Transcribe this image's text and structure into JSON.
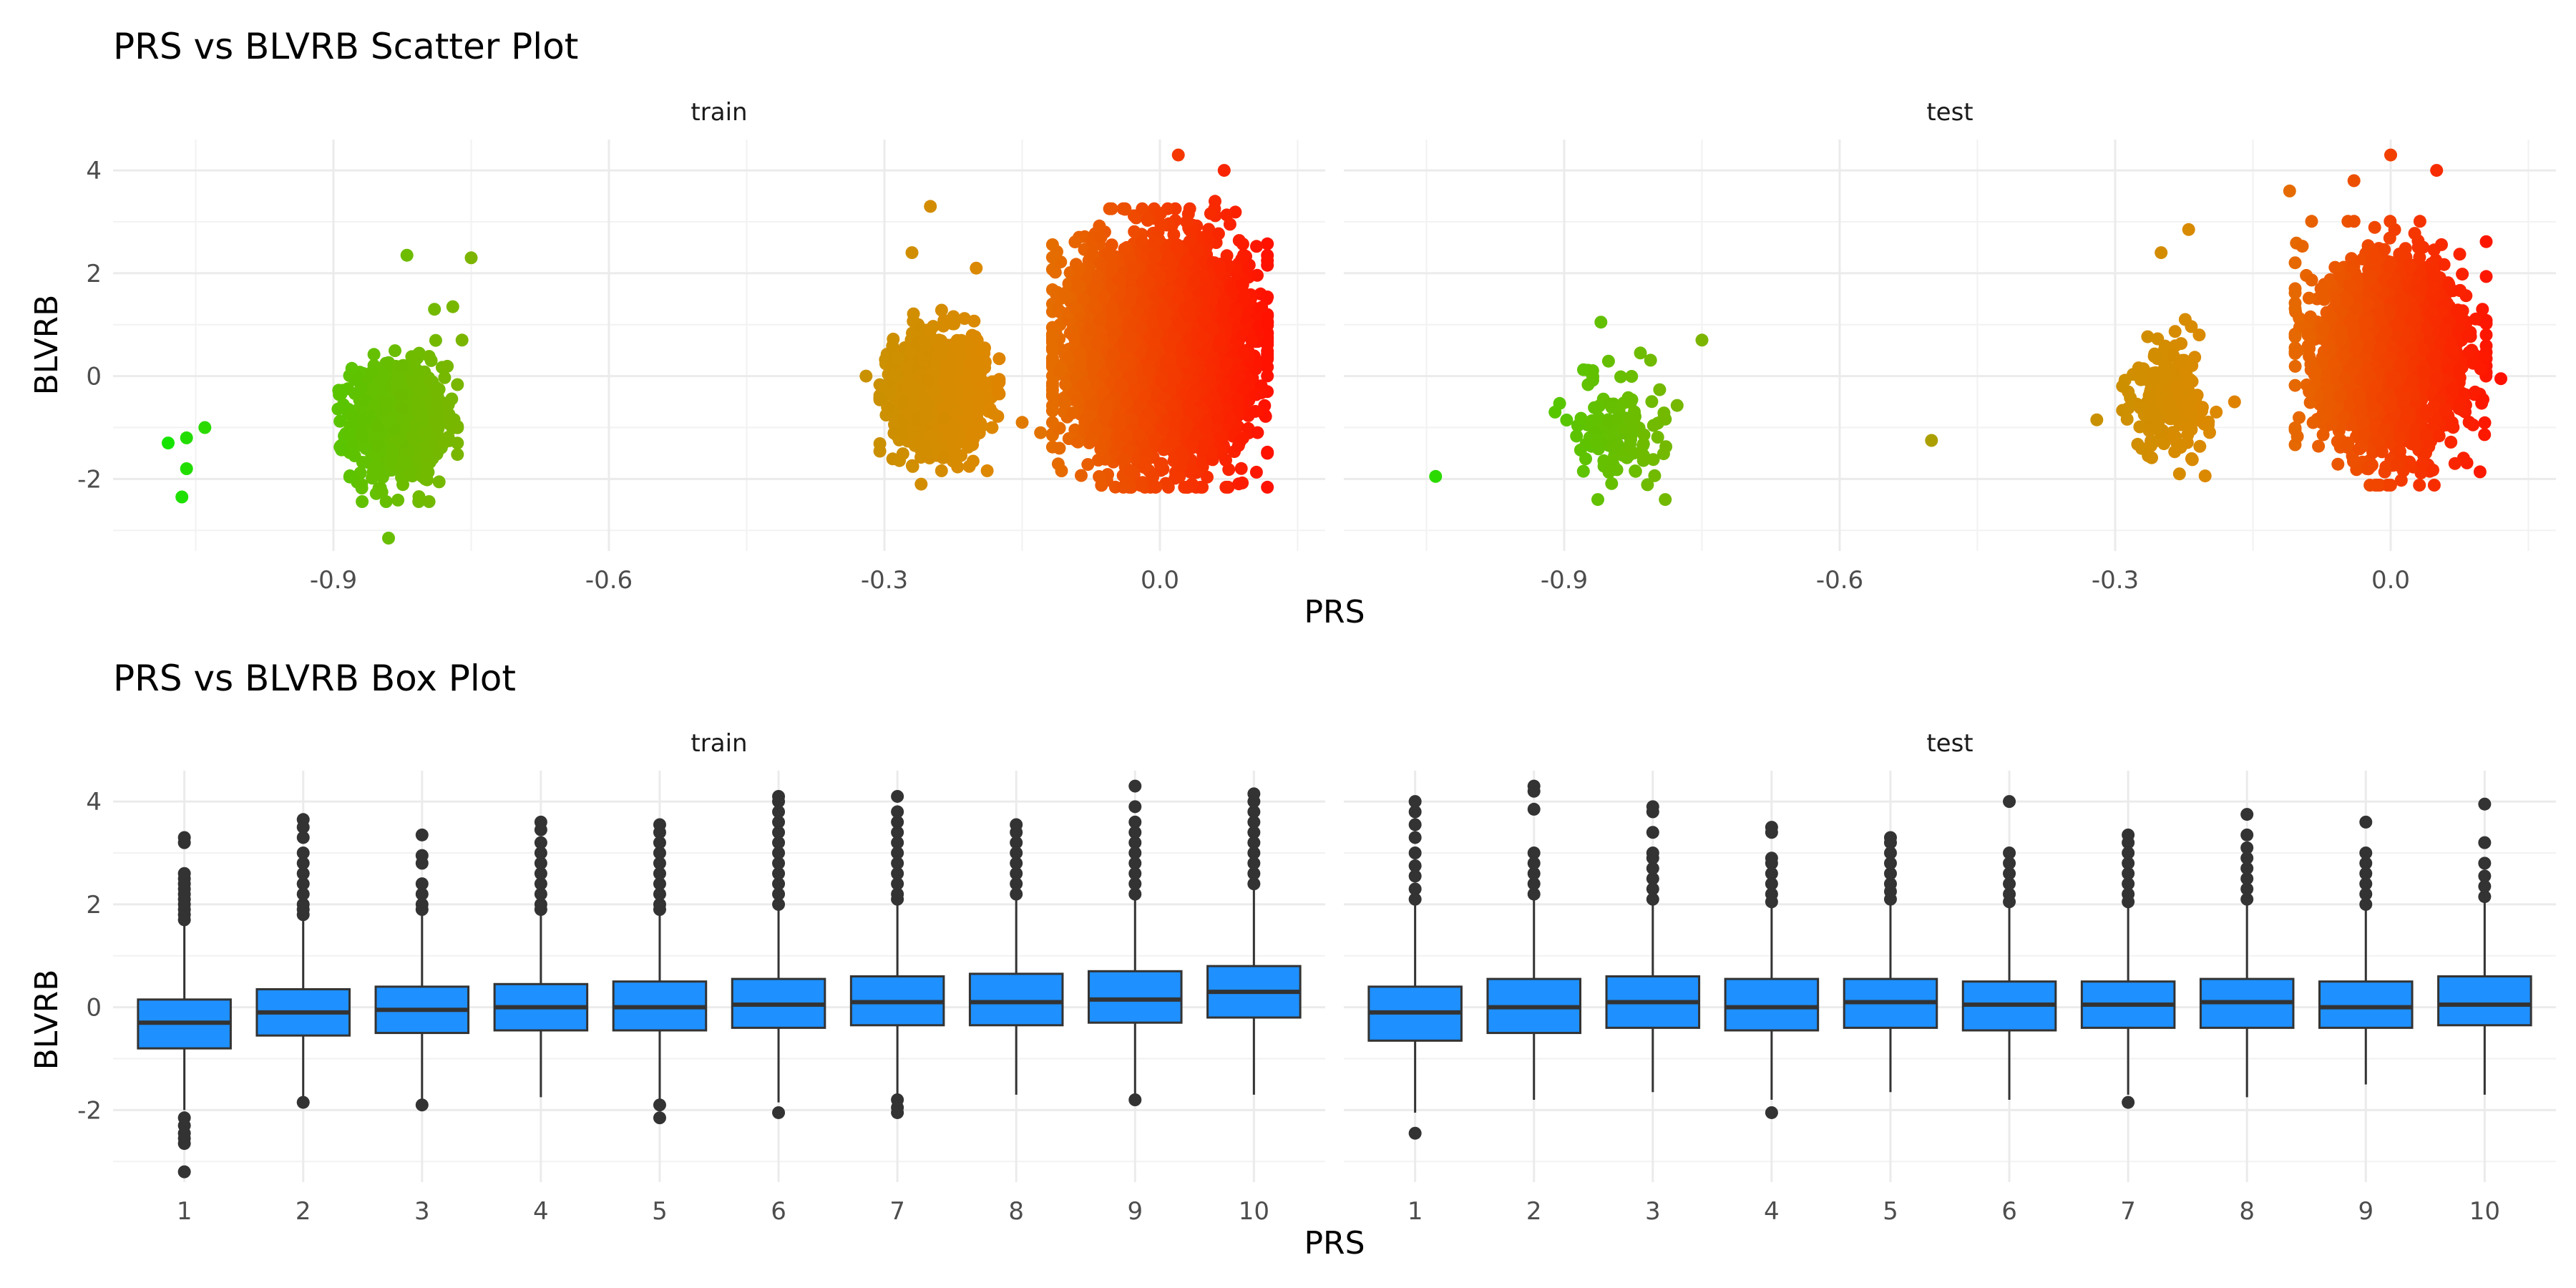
{
  "chart_data": [
    {
      "type": "scatter",
      "title": "PRS vs BLVRB Scatter Plot",
      "xlabel": "PRS",
      "ylabel": "BLVRB",
      "facets": [
        "train",
        "test"
      ],
      "xlim": [
        -1.14,
        0.18
      ],
      "ylim": [
        -3.4,
        4.6
      ],
      "x_ticks": [
        -0.9,
        -0.6,
        -0.3,
        0.0
      ],
      "x_tick_labels": [
        "-0.9",
        "-0.6",
        "-0.3",
        "0.0"
      ],
      "y_ticks": [
        -2,
        0,
        2,
        4
      ],
      "y_tick_labels": [
        "-2",
        "0",
        "2",
        "4"
      ],
      "grid": true,
      "color_scale": {
        "low_x": -1.1,
        "low": "#00ee00",
        "mid": "#dd8800",
        "high_x": 0.12,
        "high": "#ff1100"
      },
      "clusters": {
        "train": [
          {
            "x": -0.83,
            "sx": 0.025,
            "y": -0.9,
            "sy": 0.55,
            "n": 900
          },
          {
            "x": -0.24,
            "sx": 0.025,
            "y": -0.3,
            "sy": 0.55,
            "n": 1100
          },
          {
            "x": 0.0,
            "sx": 0.045,
            "y": 0.5,
            "sy": 0.95,
            "n": 5000
          }
        ],
        "test": [
          {
            "x": -0.84,
            "sx": 0.025,
            "y": -1.0,
            "sy": 0.5,
            "n": 120
          },
          {
            "x": -0.24,
            "sx": 0.02,
            "y": -0.4,
            "sy": 0.55,
            "n": 220
          },
          {
            "x": 0.0,
            "sx": 0.04,
            "y": 0.4,
            "sy": 0.9,
            "n": 2200
          }
        ]
      },
      "points": {
        "train": [
          [
            -1.08,
            -1.3
          ],
          [
            -1.06,
            -1.2
          ],
          [
            -1.04,
            -1.0
          ],
          [
            -1.06,
            -1.8
          ],
          [
            -1.065,
            -2.35
          ],
          [
            -0.82,
            2.35
          ],
          [
            -0.75,
            2.3
          ],
          [
            -0.77,
            1.35
          ],
          [
            -0.79,
            1.3
          ],
          [
            -0.76,
            0.7
          ],
          [
            -0.89,
            -0.6
          ],
          [
            -0.88,
            0.15
          ],
          [
            -0.84,
            -3.15
          ],
          [
            -0.78,
            -1.3
          ],
          [
            -0.8,
            -2.0
          ],
          [
            -0.25,
            3.3
          ],
          [
            -0.32,
            0.0
          ],
          [
            -0.27,
            2.4
          ],
          [
            -0.2,
            2.1
          ],
          [
            -0.15,
            -0.9
          ],
          [
            -0.13,
            -1.1
          ],
          [
            -0.07,
            -1.0
          ],
          [
            0.09,
            0.8
          ],
          [
            0.1,
            0.7
          ],
          [
            0.06,
            3.4
          ],
          [
            0.02,
            4.3
          ],
          [
            0.07,
            4.0
          ],
          [
            0.035,
            -2.1
          ],
          [
            -0.26,
            -2.1
          ],
          [
            -0.11,
            0.1
          ]
        ],
        "test": [
          [
            -1.04,
            -1.95
          ],
          [
            -0.91,
            -0.7
          ],
          [
            -0.86,
            1.05
          ],
          [
            -0.75,
            0.7
          ],
          [
            -0.79,
            -2.4
          ],
          [
            -0.5,
            -1.25
          ],
          [
            -0.32,
            -0.85
          ],
          [
            -0.22,
            2.85
          ],
          [
            -0.25,
            2.4
          ],
          [
            -0.23,
            -1.9
          ],
          [
            -0.11,
            3.6
          ],
          [
            -0.19,
            -0.7
          ],
          [
            -0.17,
            -0.5
          ],
          [
            0.12,
            -0.05
          ],
          [
            0.0,
            4.3
          ],
          [
            0.1,
            1.3
          ],
          [
            0.05,
            4.0
          ],
          [
            -0.04,
            3.8
          ],
          [
            -0.09,
            0.8
          ],
          [
            0.07,
            -1.7
          ]
        ]
      }
    },
    {
      "type": "box",
      "title": "PRS vs BLVRB Box Plot",
      "xlabel": "PRS",
      "ylabel": "BLVRB",
      "facets": [
        "train",
        "test"
      ],
      "categories": [
        "1",
        "2",
        "3",
        "4",
        "5",
        "6",
        "7",
        "8",
        "9",
        "10"
      ],
      "ylim": [
        -3.4,
        4.6
      ],
      "y_ticks": [
        -2,
        0,
        2,
        4
      ],
      "y_tick_labels": [
        "-2",
        "0",
        "2",
        "4"
      ],
      "fill": "#1E90FF",
      "grid": true,
      "boxes": {
        "train": [
          {
            "q1": -0.8,
            "median": -0.3,
            "q3": 0.15,
            "lo": -2.0,
            "hi": 1.6,
            "out_hi": [
              1.7,
              1.8,
              1.9,
              2.0,
              2.1,
              2.2,
              2.3,
              2.4,
              2.5,
              2.6,
              3.2,
              3.3
            ],
            "out_lo": [
              -2.15,
              -2.3,
              -2.45,
              -2.55,
              -2.65,
              -3.2
            ]
          },
          {
            "q1": -0.55,
            "median": -0.1,
            "q3": 0.35,
            "lo": -1.8,
            "hi": 1.7,
            "out_hi": [
              1.8,
              1.9,
              2.0,
              2.2,
              2.4,
              2.6,
              2.8,
              3.0,
              3.3,
              3.5,
              3.65
            ],
            "out_lo": [
              -1.85
            ]
          },
          {
            "q1": -0.5,
            "median": -0.05,
            "q3": 0.4,
            "lo": -1.85,
            "hi": 1.8,
            "out_hi": [
              1.9,
              2.0,
              2.2,
              2.4,
              2.8,
              2.95,
              3.35
            ],
            "out_lo": [
              -1.9
            ]
          },
          {
            "q1": -0.45,
            "median": 0.0,
            "q3": 0.45,
            "lo": -1.75,
            "hi": 1.8,
            "out_hi": [
              1.9,
              2.0,
              2.2,
              2.4,
              2.6,
              2.8,
              3.0,
              3.2,
              3.45,
              3.6
            ],
            "out_lo": []
          },
          {
            "q1": -0.45,
            "median": 0.0,
            "q3": 0.5,
            "lo": -1.8,
            "hi": 1.8,
            "out_hi": [
              1.9,
              2.0,
              2.2,
              2.4,
              2.6,
              2.8,
              3.0,
              3.2,
              3.4,
              3.55
            ],
            "out_lo": [
              -1.9,
              -2.15
            ]
          },
          {
            "q1": -0.4,
            "median": 0.05,
            "q3": 0.55,
            "lo": -1.85,
            "hi": 1.9,
            "out_hi": [
              2.0,
              2.2,
              2.4,
              2.6,
              2.8,
              3.0,
              3.2,
              3.4,
              3.6,
              3.8,
              4.0,
              4.1
            ],
            "out_lo": [
              -2.05
            ]
          },
          {
            "q1": -0.35,
            "median": 0.1,
            "q3": 0.6,
            "lo": -1.7,
            "hi": 2.0,
            "out_hi": [
              2.1,
              2.2,
              2.4,
              2.6,
              2.8,
              3.0,
              3.2,
              3.4,
              3.6,
              3.8,
              4.1
            ],
            "out_lo": [
              -1.8,
              -1.95,
              -2.05
            ]
          },
          {
            "q1": -0.35,
            "median": 0.1,
            "q3": 0.65,
            "lo": -1.7,
            "hi": 2.1,
            "out_hi": [
              2.2,
              2.4,
              2.6,
              2.8,
              3.0,
              3.2,
              3.4,
              3.55
            ],
            "out_lo": []
          },
          {
            "q1": -0.3,
            "median": 0.15,
            "q3": 0.7,
            "lo": -1.7,
            "hi": 2.1,
            "out_hi": [
              2.2,
              2.4,
              2.6,
              2.8,
              3.0,
              3.2,
              3.4,
              3.6,
              3.9,
              4.3
            ],
            "out_lo": [
              -1.8
            ]
          },
          {
            "q1": -0.2,
            "median": 0.3,
            "q3": 0.8,
            "lo": -1.7,
            "hi": 2.3,
            "out_hi": [
              2.4,
              2.6,
              2.8,
              3.0,
              3.2,
              3.4,
              3.6,
              3.8,
              4.0,
              4.15
            ],
            "out_lo": []
          }
        ],
        "test": [
          {
            "q1": -0.65,
            "median": -0.1,
            "q3": 0.4,
            "lo": -2.05,
            "hi": 2.0,
            "out_hi": [
              2.1,
              2.3,
              2.55,
              2.75,
              3.0,
              3.3,
              3.55,
              3.8,
              4.0
            ],
            "out_lo": [
              -2.45
            ]
          },
          {
            "q1": -0.5,
            "median": 0.0,
            "q3": 0.55,
            "lo": -1.8,
            "hi": 2.1,
            "out_hi": [
              2.2,
              2.4,
              2.6,
              2.8,
              3.0,
              3.85,
              4.2,
              4.3
            ],
            "out_lo": []
          },
          {
            "q1": -0.4,
            "median": 0.1,
            "q3": 0.6,
            "lo": -1.65,
            "hi": 2.0,
            "out_hi": [
              2.1,
              2.3,
              2.5,
              2.7,
              2.9,
              3.0,
              3.4,
              3.8,
              3.9
            ],
            "out_lo": []
          },
          {
            "q1": -0.45,
            "median": 0.0,
            "q3": 0.55,
            "lo": -1.8,
            "hi": 1.95,
            "out_hi": [
              2.05,
              2.2,
              2.4,
              2.6,
              2.8,
              2.9,
              3.4,
              3.5
            ],
            "out_lo": [
              -2.05
            ]
          },
          {
            "q1": -0.4,
            "median": 0.1,
            "q3": 0.55,
            "lo": -1.65,
            "hi": 2.0,
            "out_hi": [
              2.1,
              2.25,
              2.4,
              2.6,
              2.8,
              3.0,
              3.2,
              3.3
            ],
            "out_lo": []
          },
          {
            "q1": -0.45,
            "median": 0.05,
            "q3": 0.5,
            "lo": -1.8,
            "hi": 1.95,
            "out_hi": [
              2.05,
              2.2,
              2.4,
              2.6,
              2.8,
              3.0,
              4.0
            ],
            "out_lo": []
          },
          {
            "q1": -0.4,
            "median": 0.05,
            "q3": 0.5,
            "lo": -1.7,
            "hi": 1.95,
            "out_hi": [
              2.05,
              2.2,
              2.4,
              2.6,
              2.8,
              3.0,
              3.2,
              3.35
            ],
            "out_lo": [
              -1.85
            ]
          },
          {
            "q1": -0.4,
            "median": 0.1,
            "q3": 0.55,
            "lo": -1.75,
            "hi": 2.0,
            "out_hi": [
              2.1,
              2.3,
              2.5,
              2.7,
              2.9,
              3.1,
              3.35,
              3.75
            ],
            "out_lo": []
          },
          {
            "q1": -0.4,
            "median": 0.0,
            "q3": 0.5,
            "lo": -1.5,
            "hi": 1.9,
            "out_hi": [
              2.0,
              2.2,
              2.4,
              2.6,
              2.8,
              3.0,
              3.6
            ],
            "out_lo": []
          },
          {
            "q1": -0.35,
            "median": 0.05,
            "q3": 0.6,
            "lo": -1.7,
            "hi": 2.05,
            "out_hi": [
              2.15,
              2.35,
              2.55,
              2.8,
              3.2,
              3.95
            ],
            "out_lo": []
          }
        ]
      }
    }
  ]
}
